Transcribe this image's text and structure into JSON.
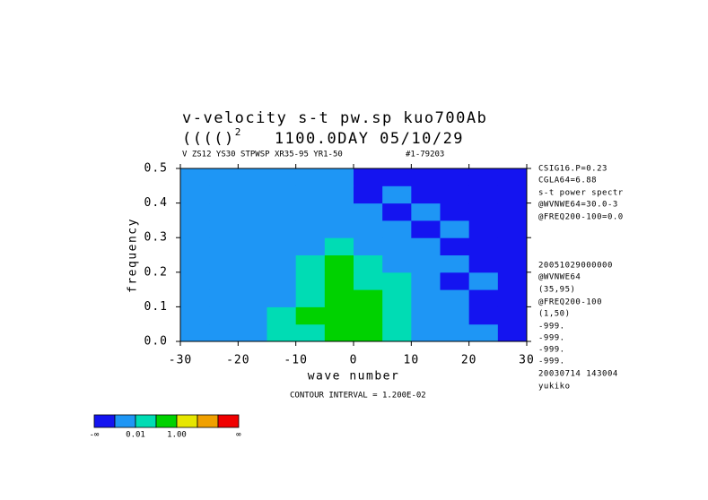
{
  "chart_data": {
    "type": "contour",
    "title": "v-velocity s-t pw.sp  kuo700Ab",
    "title_line2": [
      "(((()",
      "2",
      "1100.0DAY 05/10/29"
    ],
    "subtitle": [
      "V ZS12 YS30 STPWSP XR35-95 YR1-50",
      "#1-79203"
    ],
    "x_label": "wave number",
    "y_label": "frequency",
    "xlim": [
      -30,
      30
    ],
    "ylim": [
      0,
      0.5
    ],
    "xticks": [
      -30,
      -20,
      -10,
      0,
      10,
      20,
      30
    ],
    "yticks": [
      {
        "value": 0,
        "label": "0.0"
      },
      0.1,
      0.2,
      0.3,
      0.4,
      0.5
    ],
    "x": [
      -27.5,
      -22.5,
      -17.5,
      -12.5,
      -7.5,
      -2.5,
      2.5,
      7.5,
      12.5,
      17.5,
      22.5,
      27.5
    ],
    "y": [
      0.025,
      0.075,
      0.125,
      0.175,
      0.225,
      0.275,
      0.325,
      0.375,
      0.425,
      0.475
    ],
    "z": [
      [
        1,
        1,
        1,
        2,
        2,
        3,
        3,
        2,
        1,
        1,
        1,
        0
      ],
      [
        1,
        1,
        1,
        2,
        3,
        3,
        3,
        2,
        1,
        1,
        0,
        0
      ],
      [
        1,
        1,
        1,
        1,
        2,
        3,
        3,
        2,
        1,
        1,
        0,
        0
      ],
      [
        1,
        1,
        1,
        1,
        2,
        3,
        2,
        2,
        1,
        0,
        1,
        0
      ],
      [
        1,
        1,
        1,
        1,
        2,
        3,
        2,
        1,
        1,
        1,
        0,
        0
      ],
      [
        1,
        1,
        1,
        1,
        1,
        2,
        1,
        1,
        1,
        0,
        0,
        0
      ],
      [
        1,
        1,
        1,
        1,
        1,
        1,
        1,
        1,
        0,
        1,
        0,
        0
      ],
      [
        1,
        1,
        1,
        1,
        1,
        1,
        1,
        0,
        1,
        0,
        0,
        0
      ],
      [
        1,
        1,
        1,
        1,
        1,
        1,
        0,
        1,
        0,
        0,
        0,
        0
      ],
      [
        1,
        1,
        1,
        1,
        1,
        1,
        0,
        0,
        0,
        0,
        0,
        0
      ]
    ],
    "colorbar_colors": [
      "#1414f0",
      "#1e96f5",
      "#00dcb4",
      "#00d200",
      "#e6e600",
      "#f0a000",
      "#f00000"
    ],
    "colorbar_labels": [
      "-∞",
      "0.01",
      "1.00",
      "∞"
    ],
    "contour_interval": "CONTOUR INTERVAL = 1.200E-02",
    "side_text": [
      "CSIG16.P=0.23",
      "CGLA64=6.88",
      "s-t power spectr",
      "@WVNWE64=30.0-3",
      "@FREQ200-100=0.0",
      "20051029000000",
      "@WVNWE64",
      "(35,95)",
      "@FREQ200-100",
      "(1,50)",
      "-999.",
      "-999.",
      "-999.",
      "-999.",
      "20030714 143004",
      "yukiko"
    ]
  }
}
